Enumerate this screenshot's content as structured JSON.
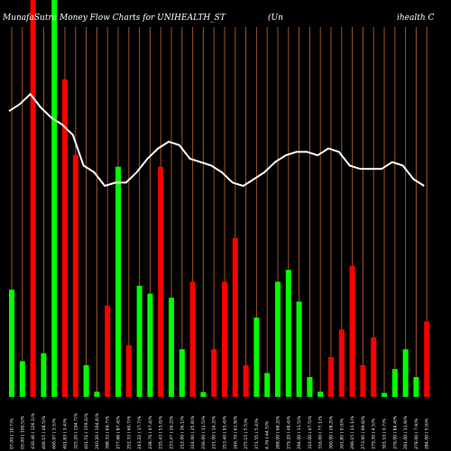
{
  "chart_data": {
    "type": "bar",
    "title": {
      "left": "MunafaSutra  Money Flow  Charts for UNIHEALTH_ST",
      "middle": "(Un",
      "right": "ihealth C"
    },
    "grid": "vertical lines at every bar",
    "colors": {
      "up": "#00ff00",
      "down": "#ff0000",
      "line": "#ffffff",
      "grid": "#a0522d",
      "background": "#000000"
    },
    "series": [
      {
        "kind": "bar",
        "values": [
          {
            "label": "07.00 ( 10.7)%",
            "direction": "up",
            "value": 0.27
          },
          {
            "label": "03.00 ( 100.5)%",
            "direction": "up",
            "value": 0.09
          },
          {
            "label": "430.46 ( 126.1)%",
            "direction": "down",
            "value": 1.0
          },
          {
            "label": "406.15 ( 48.5)%",
            "direction": "up",
            "value": 0.11
          },
          {
            "label": "400.97 ( 3.5)%",
            "direction": "up",
            "value": 1.0
          },
          {
            "label": "401.83 ( 3.4)%",
            "direction": "down",
            "value": 0.8
          },
          {
            "label": "325.20 ( 194.7)%",
            "direction": "down",
            "value": 0.61
          },
          {
            "label": "401.51 ( 159.2)%",
            "direction": "up",
            "value": 0.08
          },
          {
            "label": "240.20 ( 164.4)%",
            "direction": "up",
            "value": 0.013
          },
          {
            "label": "398.33 ( 69.7)%",
            "direction": "down",
            "value": 0.23
          },
          {
            "label": "277.68 ( 87.4)%",
            "direction": "up",
            "value": 0.58
          },
          {
            "label": "252.33 ( 60.7)%",
            "direction": "down",
            "value": 0.13
          },
          {
            "label": "243.22 ( 17.7)%",
            "direction": "up",
            "value": 0.28
          },
          {
            "label": "238.76 ( 47.4)%",
            "direction": "up",
            "value": 0.26
          },
          {
            "label": "235.43 ( 53.0)%",
            "direction": "down",
            "value": 0.58
          },
          {
            "label": "233.47 ( 26.2)%",
            "direction": "up",
            "value": 0.25
          },
          {
            "label": "212.00 ( 36.1)%",
            "direction": "up",
            "value": 0.12
          },
          {
            "label": "224.00 ( 25.8)%",
            "direction": "down",
            "value": 0.29
          },
          {
            "label": "236.00 ( 11.5)%",
            "direction": "up",
            "value": 0.012
          },
          {
            "label": "231.00 ( 14.2)%",
            "direction": "down",
            "value": 0.12
          },
          {
            "label": "253.40 ( 93.4)%",
            "direction": "down",
            "value": 0.29
          },
          {
            "label": "246.70 ( 61.9)%",
            "direction": "down",
            "value": 0.4
          },
          {
            "label": "275.15 ( 5.5)%",
            "direction": "down",
            "value": 0.08
          },
          {
            "label": "271.55 ( 5.4)%",
            "direction": "up",
            "value": 0.2
          },
          {
            "label": "4.76 ( 64.5)%",
            "direction": "up",
            "value": 0.06
          },
          {
            "label": "288.00 ( 68.2)%",
            "direction": "up",
            "value": 0.29
          },
          {
            "label": "279.20 ( 48.4)%",
            "direction": "up",
            "value": 0.32
          },
          {
            "label": "294.00 ( 11.5)%",
            "direction": "up",
            "value": 0.24
          },
          {
            "label": "312.00 ( 47.5)%",
            "direction": "up",
            "value": 0.05
          },
          {
            "label": "316.00 ( 77.1)%",
            "direction": "up",
            "value": 0.013
          },
          {
            "label": "300.00 ( 28.2)%",
            "direction": "down",
            "value": 0.1
          },
          {
            "label": "301.85 ( 0.0)%",
            "direction": "down",
            "value": 0.17
          },
          {
            "label": "296.15 ( 11.1)%",
            "direction": "down",
            "value": 0.33
          },
          {
            "label": "273.95 ( 99.6)%",
            "direction": "down",
            "value": 0.08
          },
          {
            "label": "279.30 ( 4.5)%",
            "direction": "down",
            "value": 0.15
          },
          {
            "label": "301.10 ( 0.7)%",
            "direction": "up",
            "value": 0.01
          },
          {
            "label": "276.00 ( 84.4)%",
            "direction": "up",
            "value": 0.07
          },
          {
            "label": "291.00 ( 11.9)%",
            "direction": "up",
            "value": 0.12
          },
          {
            "label": "278.00 ( 7.9)%",
            "direction": "up",
            "value": 0.05
          },
          {
            "label": "284.00 ( 5.0)%",
            "direction": "down",
            "value": 0.19
          }
        ]
      },
      {
        "kind": "line",
        "values": [
          0.84,
          0.86,
          0.89,
          0.85,
          0.82,
          0.8,
          0.77,
          0.68,
          0.66,
          0.62,
          0.63,
          0.63,
          0.66,
          0.7,
          0.73,
          0.75,
          0.74,
          0.7,
          0.69,
          0.68,
          0.66,
          0.63,
          0.62,
          0.64,
          0.66,
          0.69,
          0.71,
          0.72,
          0.72,
          0.71,
          0.73,
          0.72,
          0.68,
          0.67,
          0.67,
          0.67,
          0.69,
          0.68,
          0.64,
          0.62
        ]
      }
    ]
  }
}
